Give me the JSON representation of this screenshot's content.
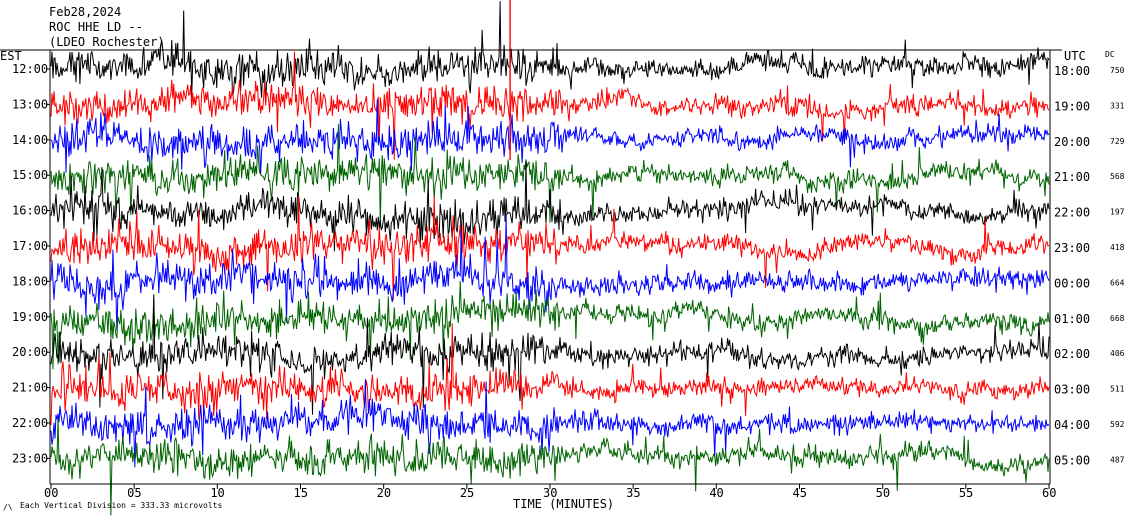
{
  "header": {
    "date": "Feb28,2024",
    "station": "ROC HHE LD --",
    "location": "(LDEO Rochester)"
  },
  "colors": {
    "trace_cycle": [
      "#000000",
      "#ff0000",
      "#0000ff",
      "#006400"
    ],
    "event": "#ff0000"
  },
  "chart_data": {
    "type": "line",
    "title": "",
    "left_axis_title": "EST",
    "right_axis_title": "UTC",
    "dc_title": "DC",
    "xlabel": "TIME (MINUTES)",
    "xlim": [
      0,
      60
    ],
    "x_ticks": [
      {
        "value": 0,
        "label": "00"
      },
      {
        "value": 5,
        "label": "05"
      },
      {
        "value": 10,
        "label": "10"
      },
      {
        "value": 15,
        "label": "15"
      },
      {
        "value": 20,
        "label": "20"
      },
      {
        "value": 25,
        "label": "25"
      },
      {
        "value": 30,
        "label": "30"
      },
      {
        "value": 35,
        "label": "35"
      },
      {
        "value": 40,
        "label": "40"
      },
      {
        "value": 45,
        "label": "45"
      },
      {
        "value": 50,
        "label": "50"
      },
      {
        "value": 55,
        "label": "55"
      },
      {
        "value": 60,
        "label": "60"
      }
    ],
    "rows": [
      {
        "est": "12:00",
        "utc": "18:00",
        "dc": "750"
      },
      {
        "est": "13:00",
        "utc": "19:00",
        "dc": "331"
      },
      {
        "est": "14:00",
        "utc": "20:00",
        "dc": "729"
      },
      {
        "est": "15:00",
        "utc": "21:00",
        "dc": "568"
      },
      {
        "est": "16:00",
        "utc": "22:00",
        "dc": "197"
      },
      {
        "est": "17:00",
        "utc": "23:00",
        "dc": "418"
      },
      {
        "est": "18:00",
        "utc": "00:00",
        "dc": "664"
      },
      {
        "est": "19:00",
        "utc": "01:00",
        "dc": "668"
      },
      {
        "est": "20:00",
        "utc": "02:00",
        "dc": "406"
      },
      {
        "est": "21:00",
        "utc": "03:00",
        "dc": "511"
      },
      {
        "est": "22:00",
        "utc": "04:00",
        "dc": "592"
      },
      {
        "est": "23:00",
        "utc": "05:00",
        "dc": "487"
      }
    ],
    "event_marker_minute": 27.6,
    "scale_note": "Each Vertical Division = 333.33 microvolts"
  }
}
